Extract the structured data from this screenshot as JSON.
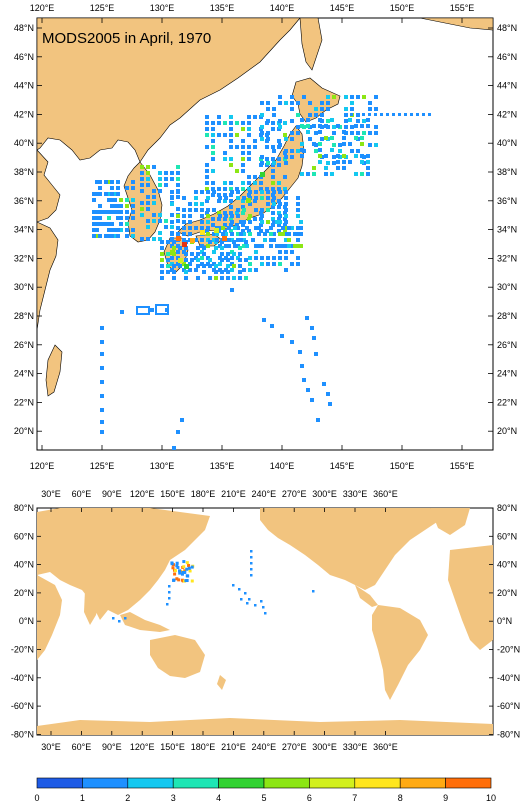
{
  "title": "MODS2005 in April, 1970",
  "colors": {
    "land": "#F2C47F",
    "ocean": "#FFFFFF",
    "border": "#000000"
  },
  "map_top": {
    "x_labels": [
      "120°E",
      "125°E",
      "130°E",
      "135°E",
      "140°E",
      "145°E",
      "150°E",
      "155°E"
    ],
    "y_labels": [
      "48°N",
      "46°N",
      "44°N",
      "42°N",
      "40°N",
      "38°N",
      "36°N",
      "34°N",
      "32°N",
      "30°N",
      "28°N",
      "26°N",
      "24°N",
      "22°N",
      "20°N"
    ]
  },
  "map_bottom": {
    "x_labels": [
      "30°E",
      "60°E",
      "90°E",
      "120°E",
      "150°E",
      "180°E",
      "210°E",
      "240°E",
      "270°E",
      "300°E",
      "330°E",
      "360°E"
    ],
    "y_labels": [
      "80°N",
      "60°N",
      "40°N",
      "20°N",
      "0°N",
      "-20°N",
      "-40°N",
      "-60°N",
      "-80°N"
    ]
  },
  "colorbar": {
    "labels": [
      "0",
      "1",
      "2",
      "3",
      "4",
      "5",
      "6",
      "7",
      "8",
      "9",
      "10"
    ],
    "colors": [
      "#1E5BE6",
      "#1E90FF",
      "#14C8F0",
      "#1EE6B4",
      "#32D232",
      "#8CE614",
      "#D2F01E",
      "#FFE61E",
      "#FFAA14",
      "#FF6E0A",
      "#E63214"
    ]
  }
}
